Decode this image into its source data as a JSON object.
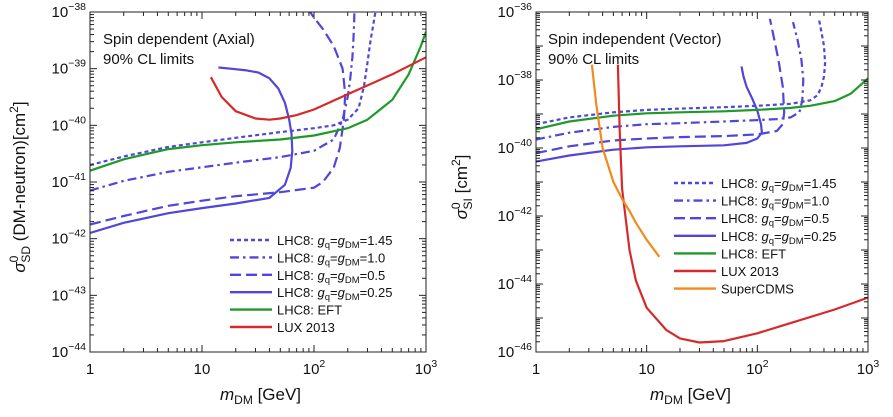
{
  "chart_data": [
    {
      "type": "line",
      "title": "",
      "annotation": [
        "Spin dependent (Axial)",
        "90% CL limits"
      ],
      "xlabel": {
        "main": "m",
        "sub": "DM",
        "rest": " [GeV]"
      },
      "ylabel": {
        "main": "σ",
        "sup": "0",
        "sub": "SD",
        "rest": " (DM-neutron)[cm",
        "sup2": "2",
        "tail": "]"
      },
      "xscale": "log",
      "yscale": "log",
      "xlim": [
        1,
        1000
      ],
      "ylim": [
        1e-44,
        1e-38
      ],
      "xticks": [
        {
          "base": "1",
          "exp": ""
        },
        {
          "base": "10",
          "exp": ""
        },
        {
          "base": "10",
          "exp": "2"
        },
        {
          "base": "10",
          "exp": "3"
        }
      ],
      "yticks": [
        {
          "base": "10",
          "exp": "−44"
        },
        {
          "base": "10",
          "exp": "−43"
        },
        {
          "base": "10",
          "exp": "−42"
        },
        {
          "base": "10",
          "exp": "−41"
        },
        {
          "base": "10",
          "exp": "−40"
        },
        {
          "base": "10",
          "exp": "−39"
        },
        {
          "base": "10",
          "exp": "−38"
        }
      ],
      "legend_position": "bottom-right",
      "series": [
        {
          "name": "LHC8: gq=gDM=1.45",
          "legend": [
            "LHC8: ",
            "g",
            "q",
            "=",
            "g",
            "DM",
            "=1.45"
          ],
          "color": "#5046d8",
          "dash": "short",
          "x": [
            1,
            2,
            5,
            10,
            20,
            50,
            100,
            150,
            200,
            250,
            280,
            300,
            320,
            340,
            350,
            355,
            360
          ],
          "y": [
            -40.7,
            -40.55,
            -40.38,
            -40.3,
            -40.22,
            -40.12,
            -40.05,
            -40.0,
            -39.9,
            -39.7,
            -39.3,
            -38.9,
            -38.5,
            -38.2,
            -38.05,
            -38.0,
            -37.9
          ]
        },
        {
          "name": "LHC8: gq=gDM=1.0",
          "legend": [
            "LHC8: ",
            "g",
            "q",
            "=",
            "g",
            "DM",
            "=1.0"
          ],
          "color": "#5046d8",
          "dash": "dashdot",
          "x": [
            1,
            2,
            5,
            10,
            20,
            50,
            100,
            150,
            180,
            200,
            210,
            220,
            225,
            228,
            230
          ],
          "y": [
            -41.15,
            -40.98,
            -40.82,
            -40.74,
            -40.66,
            -40.56,
            -40.45,
            -40.25,
            -39.9,
            -39.5,
            -39.2,
            -38.8,
            -38.5,
            -38.2,
            -37.95
          ]
        },
        {
          "name": "LHC8: gq=gDM=0.5",
          "legend": [
            "LHC8: ",
            "g",
            "q",
            "=",
            "g",
            "DM",
            "=0.5"
          ],
          "color": "#5046d8",
          "dash": "long",
          "x": [
            1,
            2,
            5,
            10,
            20,
            50,
            100,
            120,
            150,
            170,
            185,
            190,
            180,
            150,
            120,
            100,
            85
          ],
          "y": [
            -41.75,
            -41.6,
            -41.42,
            -41.33,
            -41.25,
            -41.18,
            -41.1,
            -41.0,
            -40.75,
            -40.4,
            -39.9,
            -39.45,
            -39.0,
            -38.6,
            -38.3,
            -38.1,
            -37.9
          ]
        },
        {
          "name": "LHC8: gq=gDM=0.25",
          "legend": [
            "LHC8: ",
            "g",
            "q",
            "=",
            "g",
            "DM",
            "=0.25"
          ],
          "color": "#5046d8",
          "dash": "solid",
          "x": [
            1,
            2,
            5,
            10,
            20,
            40,
            55,
            62,
            64,
            63,
            60,
            55,
            48,
            40,
            32,
            25,
            18,
            14
          ],
          "y": [
            -41.9,
            -41.72,
            -41.55,
            -41.46,
            -41.38,
            -41.28,
            -41.05,
            -40.75,
            -40.45,
            -40.15,
            -39.9,
            -39.6,
            -39.35,
            -39.17,
            -39.07,
            -39.03,
            -39.0,
            -38.98
          ]
        },
        {
          "name": "LHC8: EFT",
          "legend": [
            "LHC8: EFT"
          ],
          "color": "#1f9a2a",
          "dash": "solid",
          "x": [
            1,
            2,
            5,
            10,
            20,
            50,
            100,
            200,
            300,
            500,
            700,
            900,
            1000
          ],
          "y": [
            -40.8,
            -40.6,
            -40.42,
            -40.35,
            -40.3,
            -40.25,
            -40.18,
            -40.05,
            -39.9,
            -39.55,
            -39.1,
            -38.6,
            -38.35
          ]
        },
        {
          "name": "LUX 2013",
          "legend": [
            "LUX 2013"
          ],
          "color": "#d62a2a",
          "dash": "solid",
          "x": [
            12,
            15,
            20,
            30,
            40,
            50,
            70,
            100,
            200,
            500,
            1000
          ],
          "y": [
            -39.15,
            -39.5,
            -39.75,
            -39.88,
            -39.9,
            -39.88,
            -39.82,
            -39.72,
            -39.45,
            -39.1,
            -38.8
          ]
        }
      ]
    },
    {
      "type": "line",
      "title": "",
      "annotation": [
        "Spin independent (Vector)",
        "90% CL limits"
      ],
      "xlabel": {
        "main": "m",
        "sub": "DM",
        "rest": " [GeV]"
      },
      "ylabel": {
        "main": "σ",
        "sup": "0",
        "sub": "SI",
        "rest": " [cm",
        "sup2": "2",
        "tail": "]"
      },
      "xscale": "log",
      "yscale": "log",
      "xlim": [
        1,
        1000
      ],
      "ylim": [
        1e-46,
        1e-36
      ],
      "xticks": [
        {
          "base": "1",
          "exp": ""
        },
        {
          "base": "10",
          "exp": ""
        },
        {
          "base": "10",
          "exp": "2"
        },
        {
          "base": "10",
          "exp": "3"
        }
      ],
      "yticks": [
        {
          "base": "10",
          "exp": "−46"
        },
        {
          "base": "10",
          "exp": "−44"
        },
        {
          "base": "10",
          "exp": "−42"
        },
        {
          "base": "10",
          "exp": "−40"
        },
        {
          "base": "10",
          "exp": "−38"
        },
        {
          "base": "10",
          "exp": "−36"
        }
      ],
      "legend_position": "bottom-right",
      "series": [
        {
          "name": "LHC8: gq=gDM=1.45",
          "legend": [
            "LHC8: ",
            "g",
            "q",
            "=",
            "g",
            "DM",
            "=1.45"
          ],
          "color": "#5046d8",
          "dash": "short",
          "x": [
            1,
            2,
            5,
            10,
            20,
            50,
            100,
            200,
            300,
            350,
            380,
            400,
            410,
            400,
            380,
            360
          ],
          "y": [
            -39.3,
            -39.1,
            -38.95,
            -38.88,
            -38.84,
            -38.8,
            -38.76,
            -38.7,
            -38.6,
            -38.45,
            -38.2,
            -37.9,
            -37.5,
            -37.0,
            -36.6,
            -36.2
          ]
        },
        {
          "name": "LHC8: gq=gDM=1.0",
          "legend": [
            "LHC8: ",
            "g",
            "q",
            "=",
            "g",
            "DM",
            "=1.0"
          ],
          "color": "#5046d8",
          "dash": "dashdot",
          "x": [
            1,
            2,
            5,
            10,
            20,
            50,
            100,
            150,
            200,
            240,
            255,
            260,
            250,
            230,
            210
          ],
          "y": [
            -39.75,
            -39.55,
            -39.38,
            -39.3,
            -39.27,
            -39.22,
            -39.18,
            -39.15,
            -39.1,
            -38.95,
            -38.6,
            -38.0,
            -37.4,
            -36.8,
            -36.3
          ]
        },
        {
          "name": "LHC8: gq=gDM=0.5",
          "legend": [
            "LHC8: ",
            "g",
            "q",
            "=",
            "g",
            "DM",
            "=0.5"
          ],
          "color": "#5046d8",
          "dash": "long",
          "x": [
            1,
            2,
            5,
            10,
            20,
            50,
            100,
            150,
            170,
            175,
            170,
            155,
            140,
            130
          ],
          "y": [
            -40.15,
            -39.95,
            -39.78,
            -39.72,
            -39.68,
            -39.65,
            -39.6,
            -39.5,
            -39.3,
            -38.95,
            -38.2,
            -37.4,
            -36.7,
            -36.2
          ]
        },
        {
          "name": "LHC8: gq=gDM=0.25",
          "legend": [
            "LHC8: ",
            "g",
            "q",
            "=",
            "g",
            "DM",
            "=0.25"
          ],
          "color": "#5046d8",
          "dash": "solid",
          "x": [
            1,
            2,
            5,
            10,
            20,
            50,
            80,
            100,
            110,
            108,
            100,
            90,
            80,
            75,
            72
          ],
          "y": [
            -40.4,
            -40.22,
            -40.05,
            -39.98,
            -39.95,
            -39.92,
            -39.85,
            -39.72,
            -39.55,
            -39.3,
            -38.9,
            -38.55,
            -38.2,
            -37.9,
            -37.6
          ]
        },
        {
          "name": "LHC8: EFT",
          "legend": [
            "LHC8: EFT"
          ],
          "color": "#1f9a2a",
          "dash": "solid",
          "x": [
            1,
            2,
            5,
            10,
            20,
            50,
            100,
            200,
            300,
            500,
            700,
            1000
          ],
          "y": [
            -39.45,
            -39.22,
            -39.05,
            -38.98,
            -38.95,
            -38.92,
            -38.88,
            -38.82,
            -38.76,
            -38.62,
            -38.4,
            -37.95
          ]
        },
        {
          "name": "LUX 2013",
          "legend": [
            "LUX 2013"
          ],
          "color": "#d62a2a",
          "dash": "solid",
          "x": [
            5.5,
            5.7,
            6,
            7,
            8,
            10,
            15,
            20,
            30,
            50,
            100,
            200,
            500,
            1000
          ],
          "y": [
            -37.55,
            -39.5,
            -41.2,
            -43.0,
            -43.9,
            -44.7,
            -45.35,
            -45.6,
            -45.72,
            -45.68,
            -45.45,
            -45.15,
            -44.75,
            -44.4
          ]
        },
        {
          "name": "SuperCDMS",
          "legend": [
            "SuperCDMS"
          ],
          "color": "#f08c1e",
          "dash": "solid",
          "x": [
            3.2,
            3.5,
            4,
            5,
            6,
            7,
            8,
            10,
            13
          ],
          "y": [
            -37.55,
            -38.7,
            -40.0,
            -41.0,
            -41.5,
            -41.85,
            -42.2,
            -42.7,
            -43.2
          ]
        }
      ]
    }
  ]
}
